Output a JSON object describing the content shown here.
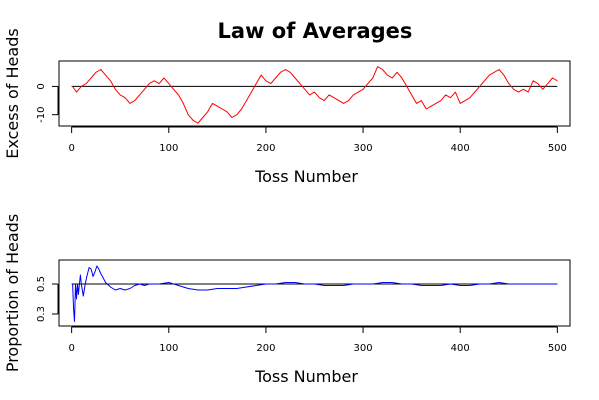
{
  "page": {
    "title": "Law of Averages"
  },
  "chart_data": [
    {
      "type": "line",
      "title": "Law of Averages",
      "xlabel": "Toss Number",
      "ylabel": "Excess of Heads",
      "xlim": [
        -13,
        513
      ],
      "ylim": [
        -14,
        9
      ],
      "x_ticks": [
        0,
        100,
        200,
        300,
        400,
        500
      ],
      "x_tick_labels": [
        "0",
        "100",
        "200",
        "300",
        "400",
        "500"
      ],
      "y_ticks": [
        -10,
        0
      ],
      "y_tick_labels": [
        "-10",
        "0"
      ],
      "reference_line": 0,
      "grid": false,
      "series": [
        {
          "color": "#ff0000",
          "x": [
            1,
            5,
            10,
            15,
            20,
            25,
            30,
            35,
            40,
            45,
            50,
            55,
            60,
            65,
            70,
            75,
            80,
            85,
            90,
            95,
            100,
            105,
            110,
            115,
            120,
            125,
            130,
            135,
            140,
            145,
            150,
            155,
            160,
            165,
            170,
            175,
            180,
            185,
            190,
            195,
            200,
            205,
            210,
            215,
            220,
            225,
            230,
            235,
            240,
            245,
            250,
            255,
            260,
            265,
            270,
            275,
            280,
            285,
            290,
            295,
            300,
            305,
            310,
            315,
            320,
            325,
            330,
            335,
            340,
            345,
            350,
            355,
            360,
            365,
            370,
            375,
            380,
            385,
            390,
            395,
            400,
            405,
            410,
            415,
            420,
            425,
            430,
            435,
            440,
            445,
            450,
            455,
            460,
            465,
            470,
            475,
            480,
            485,
            490,
            495,
            500
          ],
          "values": [
            0,
            -2,
            0,
            1,
            3,
            5,
            6,
            4,
            2,
            -1,
            -3,
            -4,
            -6,
            -5,
            -3,
            -1,
            1,
            2,
            1,
            3,
            1,
            -1,
            -3,
            -6,
            -10,
            -12,
            -13,
            -11,
            -9,
            -6,
            -7,
            -8,
            -9,
            -11,
            -10,
            -8,
            -5,
            -2,
            1,
            4,
            2,
            1,
            3,
            5,
            6,
            5,
            3,
            1,
            -1,
            -3,
            -2,
            -4,
            -5,
            -3,
            -4,
            -5,
            -6,
            -5,
            -3,
            -2,
            -1,
            1,
            3,
            7,
            6,
            4,
            3,
            5,
            3,
            0,
            -3,
            -6,
            -5,
            -8,
            -7,
            -6,
            -5,
            -3,
            -4,
            -2,
            -6,
            -5,
            -4,
            -2,
            0,
            2,
            4,
            5,
            6,
            4,
            1,
            -1,
            -2,
            -1,
            -2,
            2,
            1,
            -1,
            1,
            3,
            2
          ]
        }
      ]
    },
    {
      "type": "line",
      "title": "",
      "xlabel": "Toss Number",
      "ylabel": "Proportion of Heads",
      "xlim": [
        -13,
        513
      ],
      "ylim": [
        0.22,
        0.66
      ],
      "x_ticks": [
        0,
        100,
        200,
        300,
        400,
        500
      ],
      "x_tick_labels": [
        "0",
        "100",
        "200",
        "300",
        "400",
        "500"
      ],
      "y_ticks": [
        0.3,
        0.5
      ],
      "y_tick_labels": [
        "0.3",
        "0.5"
      ],
      "reference_line": 0.5,
      "grid": false,
      "series": [
        {
          "color": "#0000ff",
          "x": [
            1,
            2,
            3,
            4,
            5,
            6,
            7,
            8,
            9,
            10,
            12,
            14,
            16,
            18,
            20,
            22,
            24,
            26,
            28,
            30,
            35,
            40,
            45,
            50,
            55,
            60,
            65,
            70,
            75,
            80,
            90,
            100,
            110,
            120,
            130,
            140,
            150,
            160,
            170,
            180,
            190,
            200,
            210,
            220,
            230,
            240,
            250,
            260,
            270,
            280,
            290,
            300,
            310,
            320,
            330,
            340,
            350,
            360,
            370,
            380,
            390,
            400,
            410,
            420,
            430,
            440,
            450,
            460,
            470,
            480,
            490,
            500
          ],
          "values": [
            0.5,
            0.33,
            0.25,
            0.5,
            0.4,
            0.5,
            0.43,
            0.5,
            0.56,
            0.5,
            0.42,
            0.5,
            0.56,
            0.61,
            0.6,
            0.55,
            0.58,
            0.62,
            0.6,
            0.57,
            0.51,
            0.48,
            0.46,
            0.47,
            0.46,
            0.47,
            0.49,
            0.5,
            0.49,
            0.5,
            0.5,
            0.51,
            0.49,
            0.47,
            0.46,
            0.46,
            0.47,
            0.47,
            0.47,
            0.48,
            0.49,
            0.5,
            0.5,
            0.51,
            0.51,
            0.5,
            0.5,
            0.49,
            0.49,
            0.49,
            0.5,
            0.5,
            0.5,
            0.51,
            0.51,
            0.5,
            0.5,
            0.49,
            0.49,
            0.49,
            0.5,
            0.49,
            0.49,
            0.5,
            0.5,
            0.51,
            0.5,
            0.5,
            0.5,
            0.5,
            0.5,
            0.5
          ]
        }
      ]
    }
  ]
}
